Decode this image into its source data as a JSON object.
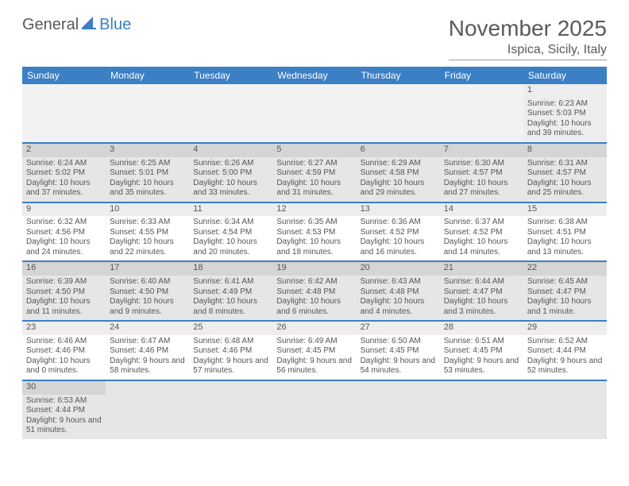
{
  "logo": {
    "word1": "General",
    "word2": "Blue"
  },
  "header": {
    "month": "November 2025",
    "location": "Ispica, Sicily, Italy"
  },
  "colors": {
    "brand": "#3b7fc4",
    "text": "#5a5a5a"
  },
  "weekdays": [
    "Sunday",
    "Monday",
    "Tuesday",
    "Wednesday",
    "Thursday",
    "Friday",
    "Saturday"
  ],
  "weeks": [
    [
      null,
      null,
      null,
      null,
      null,
      null,
      {
        "n": "1",
        "sr": "6:23 AM",
        "ss": "5:03 PM",
        "dl": "10 hours and 39 minutes."
      }
    ],
    [
      {
        "n": "2",
        "sr": "6:24 AM",
        "ss": "5:02 PM",
        "dl": "10 hours and 37 minutes."
      },
      {
        "n": "3",
        "sr": "6:25 AM",
        "ss": "5:01 PM",
        "dl": "10 hours and 35 minutes."
      },
      {
        "n": "4",
        "sr": "6:26 AM",
        "ss": "5:00 PM",
        "dl": "10 hours and 33 minutes."
      },
      {
        "n": "5",
        "sr": "6:27 AM",
        "ss": "4:59 PM",
        "dl": "10 hours and 31 minutes."
      },
      {
        "n": "6",
        "sr": "6:29 AM",
        "ss": "4:58 PM",
        "dl": "10 hours and 29 minutes."
      },
      {
        "n": "7",
        "sr": "6:30 AM",
        "ss": "4:57 PM",
        "dl": "10 hours and 27 minutes."
      },
      {
        "n": "8",
        "sr": "6:31 AM",
        "ss": "4:57 PM",
        "dl": "10 hours and 25 minutes."
      }
    ],
    [
      {
        "n": "9",
        "sr": "6:32 AM",
        "ss": "4:56 PM",
        "dl": "10 hours and 24 minutes."
      },
      {
        "n": "10",
        "sr": "6:33 AM",
        "ss": "4:55 PM",
        "dl": "10 hours and 22 minutes."
      },
      {
        "n": "11",
        "sr": "6:34 AM",
        "ss": "4:54 PM",
        "dl": "10 hours and 20 minutes."
      },
      {
        "n": "12",
        "sr": "6:35 AM",
        "ss": "4:53 PM",
        "dl": "10 hours and 18 minutes."
      },
      {
        "n": "13",
        "sr": "6:36 AM",
        "ss": "4:52 PM",
        "dl": "10 hours and 16 minutes."
      },
      {
        "n": "14",
        "sr": "6:37 AM",
        "ss": "4:52 PM",
        "dl": "10 hours and 14 minutes."
      },
      {
        "n": "15",
        "sr": "6:38 AM",
        "ss": "4:51 PM",
        "dl": "10 hours and 13 minutes."
      }
    ],
    [
      {
        "n": "16",
        "sr": "6:39 AM",
        "ss": "4:50 PM",
        "dl": "10 hours and 11 minutes."
      },
      {
        "n": "17",
        "sr": "6:40 AM",
        "ss": "4:50 PM",
        "dl": "10 hours and 9 minutes."
      },
      {
        "n": "18",
        "sr": "6:41 AM",
        "ss": "4:49 PM",
        "dl": "10 hours and 8 minutes."
      },
      {
        "n": "19",
        "sr": "6:42 AM",
        "ss": "4:48 PM",
        "dl": "10 hours and 6 minutes."
      },
      {
        "n": "20",
        "sr": "6:43 AM",
        "ss": "4:48 PM",
        "dl": "10 hours and 4 minutes."
      },
      {
        "n": "21",
        "sr": "6:44 AM",
        "ss": "4:47 PM",
        "dl": "10 hours and 3 minutes."
      },
      {
        "n": "22",
        "sr": "6:45 AM",
        "ss": "4:47 PM",
        "dl": "10 hours and 1 minute."
      }
    ],
    [
      {
        "n": "23",
        "sr": "6:46 AM",
        "ss": "4:46 PM",
        "dl": "10 hours and 0 minutes."
      },
      {
        "n": "24",
        "sr": "6:47 AM",
        "ss": "4:46 PM",
        "dl": "9 hours and 58 minutes."
      },
      {
        "n": "25",
        "sr": "6:48 AM",
        "ss": "4:46 PM",
        "dl": "9 hours and 57 minutes."
      },
      {
        "n": "26",
        "sr": "6:49 AM",
        "ss": "4:45 PM",
        "dl": "9 hours and 56 minutes."
      },
      {
        "n": "27",
        "sr": "6:50 AM",
        "ss": "4:45 PM",
        "dl": "9 hours and 54 minutes."
      },
      {
        "n": "28",
        "sr": "6:51 AM",
        "ss": "4:45 PM",
        "dl": "9 hours and 53 minutes."
      },
      {
        "n": "29",
        "sr": "6:52 AM",
        "ss": "4:44 PM",
        "dl": "9 hours and 52 minutes."
      }
    ],
    [
      {
        "n": "30",
        "sr": "6:53 AM",
        "ss": "4:44 PM",
        "dl": "9 hours and 51 minutes."
      },
      null,
      null,
      null,
      null,
      null,
      null
    ]
  ],
  "labels": {
    "sunrise": "Sunrise:",
    "sunset": "Sunset:",
    "daylight": "Daylight:"
  }
}
